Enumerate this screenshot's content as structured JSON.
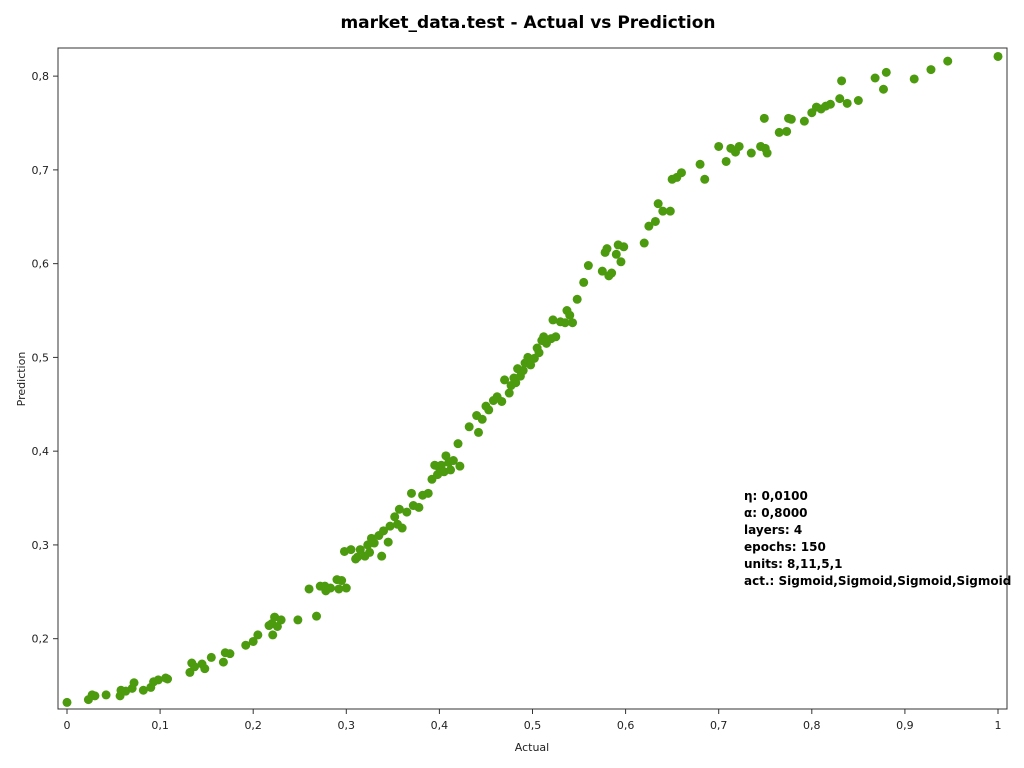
{
  "chart_data": {
    "type": "scatter",
    "title": "market_data.test - Actual vs Prediction",
    "xlabel": "Actual",
    "ylabel": "Prediction",
    "xlim": [
      0,
      1
    ],
    "ylim": [
      0.125,
      0.83
    ],
    "x_ticks": [
      "0",
      "0,1",
      "0,2",
      "0,3",
      "0,4",
      "0,5",
      "0,6",
      "0,7",
      "0,8",
      "0,9",
      "1"
    ],
    "x_tick_values": [
      0,
      0.1,
      0.2,
      0.3,
      0.4,
      0.5,
      0.6,
      0.7,
      0.8,
      0.9,
      1.0
    ],
    "y_ticks": [
      "0,2",
      "0,3",
      "0,4",
      "0,5",
      "0,6",
      "0,7",
      "0,8"
    ],
    "y_tick_values": [
      0.2,
      0.3,
      0.4,
      0.5,
      0.6,
      0.7,
      0.8
    ],
    "grid": false,
    "point_color": "#4c9a0e",
    "annotations": [
      "η: 0,0100",
      "α: 0,8000",
      "layers: 4",
      "epochs: 150",
      "units: 8,11,5,1",
      "act.: Sigmoid,Sigmoid,Sigmoid,Sigmoid"
    ],
    "points": [
      [
        0.0,
        0.132
      ],
      [
        0.023,
        0.135
      ],
      [
        0.027,
        0.14
      ],
      [
        0.03,
        0.139
      ],
      [
        0.042,
        0.14
      ],
      [
        0.057,
        0.139
      ],
      [
        0.058,
        0.145
      ],
      [
        0.063,
        0.144
      ],
      [
        0.07,
        0.147
      ],
      [
        0.072,
        0.153
      ],
      [
        0.082,
        0.145
      ],
      [
        0.09,
        0.148
      ],
      [
        0.093,
        0.154
      ],
      [
        0.098,
        0.156
      ],
      [
        0.106,
        0.158
      ],
      [
        0.108,
        0.157
      ],
      [
        0.132,
        0.164
      ],
      [
        0.134,
        0.174
      ],
      [
        0.137,
        0.17
      ],
      [
        0.145,
        0.173
      ],
      [
        0.148,
        0.168
      ],
      [
        0.155,
        0.18
      ],
      [
        0.168,
        0.175
      ],
      [
        0.17,
        0.185
      ],
      [
        0.175,
        0.184
      ],
      [
        0.192,
        0.193
      ],
      [
        0.2,
        0.197
      ],
      [
        0.205,
        0.204
      ],
      [
        0.217,
        0.214
      ],
      [
        0.22,
        0.216
      ],
      [
        0.221,
        0.204
      ],
      [
        0.223,
        0.223
      ],
      [
        0.226,
        0.213
      ],
      [
        0.23,
        0.22
      ],
      [
        0.248,
        0.22
      ],
      [
        0.26,
        0.253
      ],
      [
        0.268,
        0.224
      ],
      [
        0.272,
        0.256
      ],
      [
        0.277,
        0.256
      ],
      [
        0.278,
        0.251
      ],
      [
        0.283,
        0.254
      ],
      [
        0.29,
        0.263
      ],
      [
        0.292,
        0.253
      ],
      [
        0.295,
        0.262
      ],
      [
        0.3,
        0.254
      ],
      [
        0.298,
        0.293
      ],
      [
        0.305,
        0.295
      ],
      [
        0.31,
        0.285
      ],
      [
        0.312,
        0.287
      ],
      [
        0.315,
        0.295
      ],
      [
        0.32,
        0.288
      ],
      [
        0.323,
        0.3
      ],
      [
        0.325,
        0.292
      ],
      [
        0.327,
        0.307
      ],
      [
        0.33,
        0.302
      ],
      [
        0.335,
        0.31
      ],
      [
        0.338,
        0.288
      ],
      [
        0.34,
        0.315
      ],
      [
        0.345,
        0.303
      ],
      [
        0.347,
        0.32
      ],
      [
        0.352,
        0.33
      ],
      [
        0.355,
        0.322
      ],
      [
        0.357,
        0.338
      ],
      [
        0.36,
        0.318
      ],
      [
        0.365,
        0.335
      ],
      [
        0.37,
        0.355
      ],
      [
        0.372,
        0.342
      ],
      [
        0.378,
        0.34
      ],
      [
        0.382,
        0.353
      ],
      [
        0.388,
        0.355
      ],
      [
        0.392,
        0.37
      ],
      [
        0.395,
        0.385
      ],
      [
        0.398,
        0.375
      ],
      [
        0.4,
        0.382
      ],
      [
        0.402,
        0.385
      ],
      [
        0.405,
        0.378
      ],
      [
        0.407,
        0.395
      ],
      [
        0.41,
        0.388
      ],
      [
        0.412,
        0.38
      ],
      [
        0.415,
        0.39
      ],
      [
        0.42,
        0.408
      ],
      [
        0.422,
        0.384
      ],
      [
        0.432,
        0.426
      ],
      [
        0.44,
        0.438
      ],
      [
        0.442,
        0.42
      ],
      [
        0.446,
        0.434
      ],
      [
        0.45,
        0.448
      ],
      [
        0.453,
        0.444
      ],
      [
        0.458,
        0.454
      ],
      [
        0.462,
        0.458
      ],
      [
        0.467,
        0.453
      ],
      [
        0.47,
        0.476
      ],
      [
        0.475,
        0.462
      ],
      [
        0.477,
        0.47
      ],
      [
        0.48,
        0.478
      ],
      [
        0.482,
        0.473
      ],
      [
        0.484,
        0.488
      ],
      [
        0.487,
        0.48
      ],
      [
        0.49,
        0.486
      ],
      [
        0.492,
        0.494
      ],
      [
        0.495,
        0.5
      ],
      [
        0.498,
        0.492
      ],
      [
        0.502,
        0.499
      ],
      [
        0.505,
        0.51
      ],
      [
        0.507,
        0.505
      ],
      [
        0.51,
        0.518
      ],
      [
        0.512,
        0.522
      ],
      [
        0.515,
        0.515
      ],
      [
        0.52,
        0.52
      ],
      [
        0.522,
        0.54
      ],
      [
        0.525,
        0.522
      ],
      [
        0.53,
        0.538
      ],
      [
        0.535,
        0.537
      ],
      [
        0.537,
        0.55
      ],
      [
        0.54,
        0.545
      ],
      [
        0.543,
        0.537
      ],
      [
        0.548,
        0.562
      ],
      [
        0.555,
        0.58
      ],
      [
        0.56,
        0.598
      ],
      [
        0.575,
        0.592
      ],
      [
        0.578,
        0.612
      ],
      [
        0.58,
        0.616
      ],
      [
        0.582,
        0.587
      ],
      [
        0.585,
        0.59
      ],
      [
        0.59,
        0.61
      ],
      [
        0.592,
        0.62
      ],
      [
        0.595,
        0.602
      ],
      [
        0.598,
        0.618
      ],
      [
        0.62,
        0.622
      ],
      [
        0.625,
        0.64
      ],
      [
        0.632,
        0.645
      ],
      [
        0.635,
        0.664
      ],
      [
        0.64,
        0.656
      ],
      [
        0.648,
        0.656
      ],
      [
        0.65,
        0.69
      ],
      [
        0.655,
        0.692
      ],
      [
        0.66,
        0.697
      ],
      [
        0.68,
        0.706
      ],
      [
        0.685,
        0.69
      ],
      [
        0.7,
        0.725
      ],
      [
        0.708,
        0.709
      ],
      [
        0.713,
        0.723
      ],
      [
        0.718,
        0.719
      ],
      [
        0.722,
        0.725
      ],
      [
        0.735,
        0.718
      ],
      [
        0.745,
        0.725
      ],
      [
        0.749,
        0.755
      ],
      [
        0.75,
        0.723
      ],
      [
        0.752,
        0.718
      ],
      [
        0.765,
        0.74
      ],
      [
        0.773,
        0.741
      ],
      [
        0.775,
        0.755
      ],
      [
        0.778,
        0.754
      ],
      [
        0.792,
        0.752
      ],
      [
        0.8,
        0.761
      ],
      [
        0.805,
        0.767
      ],
      [
        0.81,
        0.765
      ],
      [
        0.815,
        0.768
      ],
      [
        0.82,
        0.77
      ],
      [
        0.83,
        0.776
      ],
      [
        0.832,
        0.795
      ],
      [
        0.838,
        0.771
      ],
      [
        0.85,
        0.774
      ],
      [
        0.868,
        0.798
      ],
      [
        0.877,
        0.786
      ],
      [
        0.88,
        0.804
      ],
      [
        0.91,
        0.797
      ],
      [
        0.928,
        0.807
      ],
      [
        0.946,
        0.816
      ],
      [
        1.0,
        0.821
      ]
    ]
  }
}
